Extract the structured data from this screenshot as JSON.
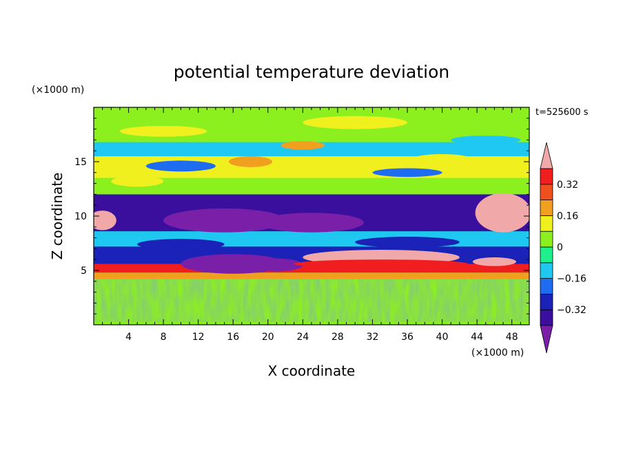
{
  "chart_data": {
    "type": "heatmap",
    "title": "potential temperature deviation",
    "xlabel": "X coordinate",
    "ylabel": "Z coordinate",
    "x_unit": "(×1000 m)",
    "y_unit": "(×1000 m)",
    "time_label": "t=525600 s",
    "xlim": [
      0,
      50
    ],
    "ylim": [
      0,
      20
    ],
    "x_ticks": [
      4,
      8,
      12,
      16,
      20,
      24,
      28,
      32,
      36,
      40,
      44,
      48
    ],
    "y_ticks": [
      5,
      10,
      15
    ],
    "colorbar": {
      "levels": [
        -0.4,
        -0.32,
        -0.24,
        -0.16,
        -0.08,
        0,
        0.08,
        0.16,
        0.24,
        0.32,
        0.4
      ],
      "labels": [
        "0.32",
        "0.16",
        "0",
        "−0.16",
        "−0.32"
      ],
      "label_values": [
        0.32,
        0.16,
        0,
        -0.16,
        -0.32
      ],
      "colors": [
        "#7a1fa8",
        "#3a0f9e",
        "#1a22b8",
        "#1e6cf0",
        "#1ec8f0",
        "#1ef08c",
        "#8cf01e",
        "#f0f01e",
        "#f0a01e",
        "#f0501e",
        "#f01e1e",
        "#f0a8a8"
      ],
      "extend": "both"
    },
    "bands": [
      {
        "z": [
          0.0,
          0.3
        ],
        "value": 0.0
      },
      {
        "z": [
          0.3,
          4.2
        ],
        "value": 0.02
      },
      {
        "z": [
          4.2,
          4.8
        ],
        "value": 0.16
      },
      {
        "z": [
          4.8,
          5.6
        ],
        "value": 0.36
      },
      {
        "z": [
          5.6,
          7.2
        ],
        "value": -0.3
      },
      {
        "z": [
          7.2,
          8.6
        ],
        "value": -0.1
      },
      {
        "z": [
          8.6,
          12.0
        ],
        "value": -0.36
      },
      {
        "z": [
          12.0,
          13.5
        ],
        "value": 0.05
      },
      {
        "z": [
          13.5,
          15.5
        ],
        "value": 0.1
      },
      {
        "z": [
          15.5,
          16.8
        ],
        "value": -0.1
      },
      {
        "z": [
          16.8,
          20.0
        ],
        "value": 0.04
      }
    ]
  }
}
